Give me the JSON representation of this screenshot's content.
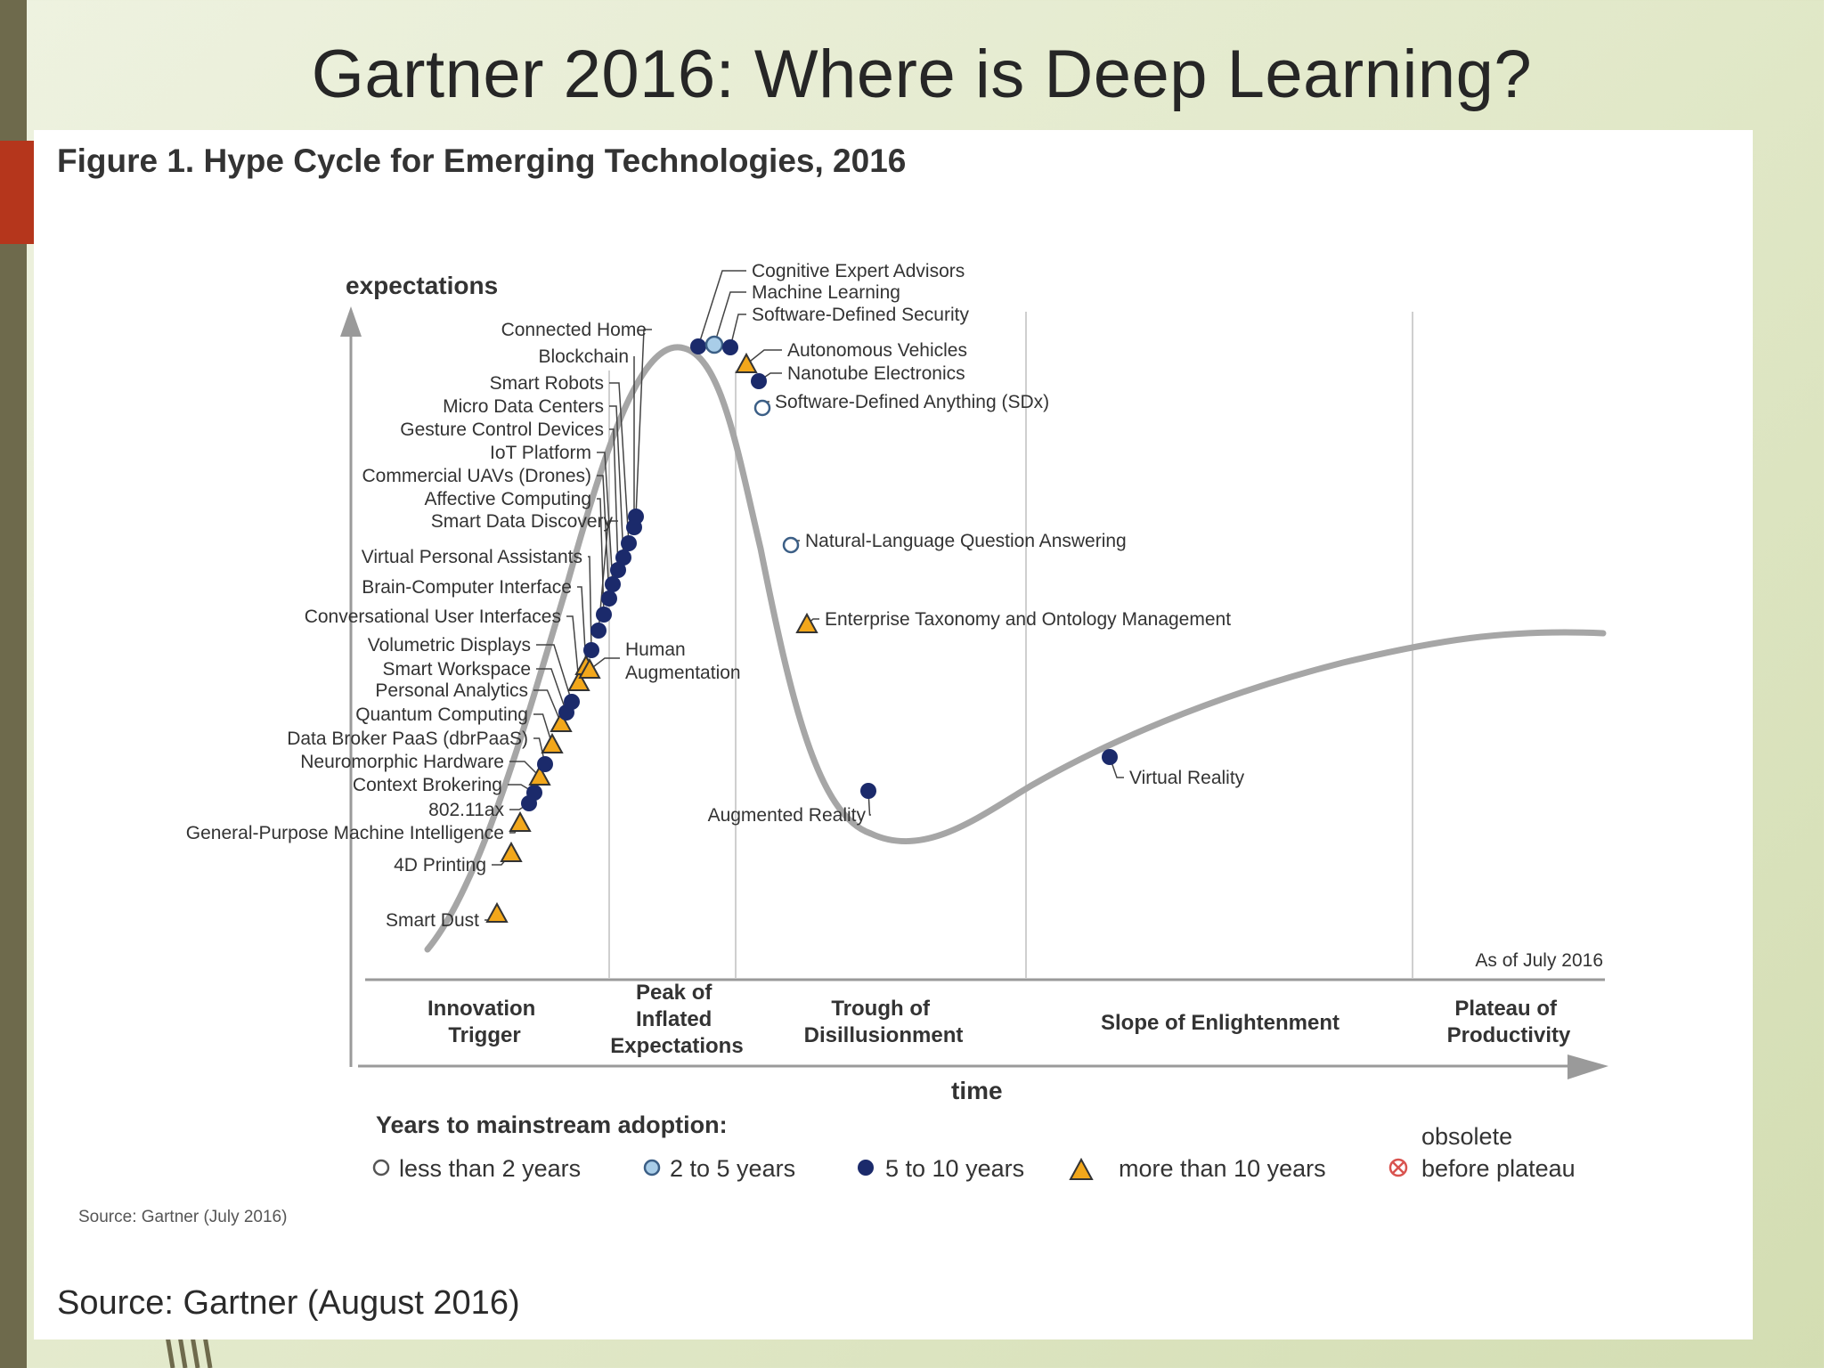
{
  "slide": {
    "title": "Gartner 2016: Where is Deep Learning?",
    "source": "Source: Gartner (August 2016)"
  },
  "figure": {
    "title": "Figure 1. Hype Cycle for Emerging Technologies, 2016",
    "y_axis_label": "expectations",
    "x_axis_label": "time",
    "as_of": "As of July 2016",
    "source_small": "Source: Gartner (July 2016)",
    "phases": [
      {
        "lines": [
          "Innovation",
          "Trigger"
        ]
      },
      {
        "lines": [
          "Peak of",
          "Inflated",
          "Expectations"
        ]
      },
      {
        "lines": [
          "Trough of",
          "Disillusionment"
        ]
      },
      {
        "lines": [
          "Slope of Enlightenment"
        ]
      },
      {
        "lines": [
          "Plateau of",
          "Productivity"
        ]
      }
    ],
    "legend": {
      "title": "Years to mainstream adoption:",
      "items": [
        {
          "symbol": "hollow-circle",
          "label": "less than 2 years"
        },
        {
          "symbol": "light-circle",
          "label": "2 to 5 years"
        },
        {
          "symbol": "dark-circle",
          "label": "5 to 10 years"
        },
        {
          "symbol": "triangle",
          "label": "more than 10 years"
        },
        {
          "symbol": "crossed-circle",
          "label_top": "obsolete",
          "label": "before plateau"
        }
      ]
    },
    "colors": {
      "curve": "#a6a6a6",
      "dark": "#1b2a6b",
      "light": "#a9cde8",
      "triangle": "#f2a71b",
      "obsolete": "#d9534f"
    },
    "technologies": [
      {
        "name": "Smart Dust",
        "marker": "triangle"
      },
      {
        "name": "4D Printing",
        "marker": "triangle"
      },
      {
        "name": "General-Purpose Machine Intelligence",
        "marker": "triangle"
      },
      {
        "name": "802.11ax",
        "marker": "dark"
      },
      {
        "name": "Context Brokering",
        "marker": "dark"
      },
      {
        "name": "Neuromorphic Hardware",
        "marker": "triangle"
      },
      {
        "name": "Data Broker PaaS (dbrPaaS)",
        "marker": "dark"
      },
      {
        "name": "Quantum Computing",
        "marker": "triangle"
      },
      {
        "name": "Personal Analytics",
        "marker": "triangle"
      },
      {
        "name": "Smart Workspace",
        "marker": "dark"
      },
      {
        "name": "Volumetric Displays",
        "marker": "dark"
      },
      {
        "name": "Conversational User Interfaces",
        "marker": "triangle"
      },
      {
        "name": "Brain-Computer Interface",
        "marker": "triangle"
      },
      {
        "name": "Virtual Personal Assistants",
        "marker": "dark"
      },
      {
        "name": "Smart Data Discovery",
        "marker": "dark"
      },
      {
        "name": "Affective Computing",
        "marker": "dark"
      },
      {
        "name": "Commercial UAVs (Drones)",
        "marker": "dark"
      },
      {
        "name": "IoT Platform",
        "marker": "dark"
      },
      {
        "name": "Gesture Control Devices",
        "marker": "dark"
      },
      {
        "name": "Micro Data Centers",
        "marker": "dark"
      },
      {
        "name": "Smart Robots",
        "marker": "dark"
      },
      {
        "name": "Blockchain",
        "marker": "dark"
      },
      {
        "name": "Connected Home",
        "marker": "dark"
      },
      {
        "name": "Human Augmentation",
        "marker": "triangle"
      },
      {
        "name": "Cognitive Expert Advisors",
        "marker": "dark"
      },
      {
        "name": "Machine Learning",
        "marker": "light"
      },
      {
        "name": "Software-Defined Security",
        "marker": "dark"
      },
      {
        "name": "Autonomous Vehicles",
        "marker": "triangle"
      },
      {
        "name": "Nanotube Electronics",
        "marker": "dark"
      },
      {
        "name": "Software-Defined Anything (SDx)",
        "marker": "hollow"
      },
      {
        "name": "Natural-Language Question Answering",
        "marker": "hollow"
      },
      {
        "name": "Enterprise Taxonomy and Ontology Management",
        "marker": "triangle"
      },
      {
        "name": "Augmented Reality",
        "marker": "dark"
      },
      {
        "name": "Virtual Reality",
        "marker": "dark"
      }
    ]
  }
}
